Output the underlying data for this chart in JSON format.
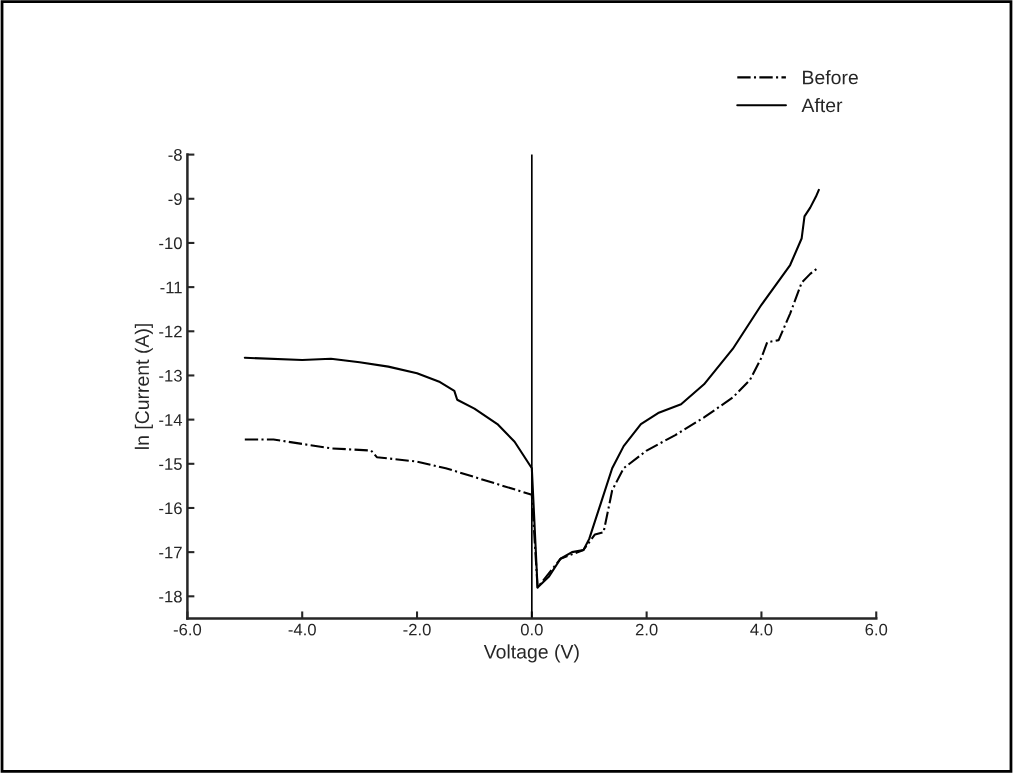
{
  "chart_data": {
    "type": "line",
    "xlabel": "Voltage (V)",
    "ylabel": "ln [Current (A)]",
    "xlim": [
      -6,
      6
    ],
    "ylim": [
      -18.5,
      -8
    ],
    "xticks": [
      {
        "value": -6,
        "label": "-6.0"
      },
      {
        "value": -4,
        "label": "-4.0"
      },
      {
        "value": -2,
        "label": "-2.0"
      },
      {
        "value": 0,
        "label": "0.0"
      },
      {
        "value": 2,
        "label": "2.0"
      },
      {
        "value": 4,
        "label": "4.0"
      },
      {
        "value": 6,
        "label": "6.0"
      }
    ],
    "yticks": [
      {
        "value": -18,
        "label": "-18"
      },
      {
        "value": -17,
        "label": "-17"
      },
      {
        "value": -16,
        "label": "-16"
      },
      {
        "value": -15,
        "label": "-15"
      },
      {
        "value": -14,
        "label": "-14"
      },
      {
        "value": -13,
        "label": "-13"
      },
      {
        "value": -12,
        "label": "-12"
      },
      {
        "value": -11,
        "label": "-11"
      },
      {
        "value": -10,
        "label": "-10"
      },
      {
        "value": -9,
        "label": "-9"
      },
      {
        "value": -8,
        "label": "-8"
      }
    ],
    "ref_lines": [
      {
        "axis": "x",
        "value": 0,
        "color": "#000000",
        "line_style": "solid"
      }
    ],
    "grid": false,
    "legend": "top right",
    "marker": "none",
    "series": [
      {
        "name": "Before",
        "color": "#000000",
        "line_style": "dashdot",
        "x": [
          -5,
          -4.5,
          -4,
          -3.5,
          -2.8,
          -2.7,
          -2,
          -1.5,
          -1,
          -0.5,
          0,
          0.1,
          0.5,
          0.9,
          1.1,
          1.25,
          1.4,
          1.6,
          2.0,
          2.5,
          3.0,
          3.5,
          3.8,
          4.0,
          4.1,
          4.3,
          4.5,
          4.7,
          4.85,
          5.0
        ],
        "values": [
          -14.45,
          -14.45,
          -14.55,
          -14.65,
          -14.7,
          -14.85,
          -14.95,
          -15.1,
          -15.3,
          -15.5,
          -15.7,
          -17.8,
          -17.15,
          -16.95,
          -16.6,
          -16.55,
          -15.6,
          -15.1,
          -14.7,
          -14.35,
          -13.95,
          -13.5,
          -13.1,
          -12.6,
          -12.25,
          -12.2,
          -11.6,
          -10.9,
          -10.7,
          -10.55
        ]
      },
      {
        "name": "After",
        "color": "#000000",
        "line_style": "solid",
        "x": [
          -5,
          -4,
          -3.5,
          -3,
          -2.5,
          -2,
          -1.6,
          -1.35,
          -1.3,
          -1,
          -0.6,
          -0.3,
          0,
          0.1,
          0.3,
          0.5,
          0.7,
          0.9,
          1.0,
          1.2,
          1.4,
          1.6,
          1.9,
          2.2,
          2.6,
          3.0,
          3.5,
          4.0,
          4.5,
          4.7,
          4.75,
          4.85,
          4.95,
          5.0
        ],
        "values": [
          -12.6,
          -12.65,
          -12.62,
          -12.7,
          -12.8,
          -12.95,
          -13.15,
          -13.35,
          -13.55,
          -13.75,
          -14.1,
          -14.5,
          -15.1,
          -17.8,
          -17.55,
          -17.15,
          -17.0,
          -16.95,
          -16.7,
          -15.9,
          -15.1,
          -14.6,
          -14.1,
          -13.85,
          -13.65,
          -13.2,
          -12.4,
          -11.4,
          -10.5,
          -9.9,
          -9.4,
          -9.2,
          -8.95,
          -8.8
        ]
      }
    ]
  }
}
